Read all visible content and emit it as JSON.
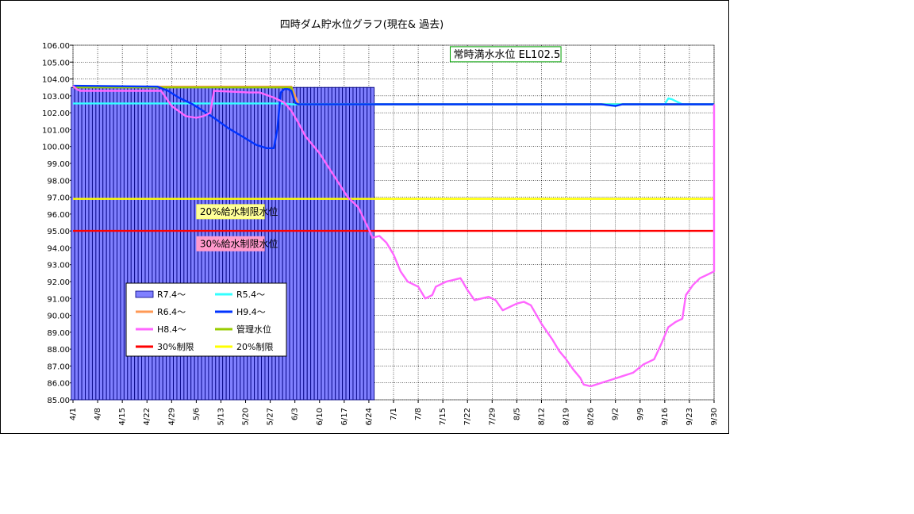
{
  "chart_data": {
    "type": "bar",
    "title": "四時ダム貯水位グラフ(現在& 過去)",
    "xlabel": "",
    "ylabel": "",
    "ylim": [
      85.0,
      106.0
    ],
    "y_ticks": [
      "85.00",
      "86.00",
      "87.00",
      "88.00",
      "89.00",
      "90.00",
      "91.00",
      "92.00",
      "93.00",
      "94.00",
      "95.00",
      "96.00",
      "97.00",
      "98.00",
      "99.00",
      "100.00",
      "101.00",
      "102.00",
      "103.00",
      "104.00",
      "105.00",
      "106.00"
    ],
    "x_ticks": [
      "4/1",
      "4/8",
      "4/15",
      "4/22",
      "4/29",
      "5/6",
      "5/13",
      "5/20",
      "5/27",
      "6/3",
      "6/10",
      "6/17",
      "6/24",
      "7/1",
      "7/8",
      "7/15",
      "7/22",
      "7/29",
      "8/5",
      "8/12",
      "8/19",
      "8/26",
      "9/2",
      "9/9",
      "9/16",
      "9/23",
      "9/30"
    ],
    "x_day_range": [
      0,
      182
    ],
    "grid": true,
    "legend_position": "center-left",
    "annotations": [
      {
        "text": "常時満水水位 EL102.5",
        "day": 108,
        "y": 105.3,
        "border": "#00a000",
        "background": "#ffffff"
      },
      {
        "text": "20%給水制限水位",
        "day": 36,
        "y": 96.0,
        "border": "#ffff66",
        "background": "#ffff99"
      },
      {
        "text": "30%給水制限水位",
        "day": 36,
        "y": 94.1,
        "border": "#ff99cc",
        "background": "#ff99cc"
      }
    ],
    "series": [
      {
        "name": "R7.4～",
        "kind": "bar",
        "color": "#8080ff",
        "edge": "#000080",
        "days": [
          0,
          85
        ],
        "value": 103.5
      },
      {
        "name": "R5.4～",
        "kind": "line",
        "color": "#33ffff",
        "points": [
          [
            0,
            102.55
          ],
          [
            60,
            102.55
          ],
          [
            62,
            102.5
          ],
          [
            88,
            102.5
          ],
          [
            130,
            102.5
          ],
          [
            155,
            102.5
          ],
          [
            168,
            102.5
          ],
          [
            169,
            102.85
          ],
          [
            170,
            102.8
          ],
          [
            173,
            102.5
          ],
          [
            182,
            102.5
          ]
        ]
      },
      {
        "name": "R6.4～",
        "kind": "line",
        "color": "#ff9955",
        "points": [
          [
            0,
            103.55
          ],
          [
            58,
            103.55
          ],
          [
            62,
            103.55
          ],
          [
            64,
            102.5
          ],
          [
            130,
            102.5
          ],
          [
            182,
            102.5
          ]
        ]
      },
      {
        "name": "H9.4～",
        "kind": "line",
        "color": "#0033ff",
        "points": [
          [
            0,
            103.6
          ],
          [
            24,
            103.55
          ],
          [
            27,
            103.3
          ],
          [
            30,
            102.9
          ],
          [
            34,
            102.5
          ],
          [
            37,
            102.1
          ],
          [
            40,
            101.7
          ],
          [
            44,
            101.1
          ],
          [
            48,
            100.6
          ],
          [
            52,
            100.1
          ],
          [
            55,
            99.9
          ],
          [
            57,
            99.9
          ],
          [
            58,
            101.0
          ],
          [
            59,
            103.2
          ],
          [
            60,
            103.4
          ],
          [
            61,
            103.4
          ],
          [
            62,
            103.3
          ],
          [
            63,
            102.6
          ],
          [
            64,
            102.5
          ],
          [
            130,
            102.5
          ],
          [
            150,
            102.5
          ],
          [
            154,
            102.4
          ],
          [
            156,
            102.5
          ],
          [
            182,
            102.5
          ]
        ]
      },
      {
        "name": "H8.4～",
        "kind": "line",
        "color": "#ff66ff",
        "points": [
          [
            0,
            103.6
          ],
          [
            1,
            103.4
          ],
          [
            2,
            103.3
          ],
          [
            25,
            103.3
          ],
          [
            28,
            102.4
          ],
          [
            32,
            101.8
          ],
          [
            35,
            101.7
          ],
          [
            37,
            101.8
          ],
          [
            39,
            102.0
          ],
          [
            40,
            103.3
          ],
          [
            50,
            103.2
          ],
          [
            53,
            103.2
          ],
          [
            57,
            102.9
          ],
          [
            60,
            102.6
          ],
          [
            62,
            102.1
          ],
          [
            64,
            101.4
          ],
          [
            66,
            100.6
          ],
          [
            70,
            99.6
          ],
          [
            74,
            98.3
          ],
          [
            78,
            97.0
          ],
          [
            81,
            96.4
          ],
          [
            84,
            95.1
          ],
          [
            85,
            94.6
          ],
          [
            87,
            94.7
          ],
          [
            89,
            94.3
          ],
          [
            91,
            93.6
          ],
          [
            93,
            92.6
          ],
          [
            95,
            92.0
          ],
          [
            98,
            91.7
          ],
          [
            100,
            91.0
          ],
          [
            102,
            91.2
          ],
          [
            103,
            91.7
          ],
          [
            106,
            92.0
          ],
          [
            108,
            92.1
          ],
          [
            110,
            92.2
          ],
          [
            112,
            91.5
          ],
          [
            114,
            90.9
          ],
          [
            116,
            91.0
          ],
          [
            118,
            91.1
          ],
          [
            120,
            90.9
          ],
          [
            122,
            90.3
          ],
          [
            124,
            90.5
          ],
          [
            126,
            90.7
          ],
          [
            128,
            90.8
          ],
          [
            130,
            90.6
          ],
          [
            133,
            89.5
          ],
          [
            136,
            88.6
          ],
          [
            138,
            87.9
          ],
          [
            140,
            87.4
          ],
          [
            142,
            86.8
          ],
          [
            144,
            86.3
          ],
          [
            145,
            85.9
          ],
          [
            147,
            85.8
          ],
          [
            150,
            86.0
          ],
          [
            153,
            86.2
          ],
          [
            156,
            86.4
          ],
          [
            159,
            86.6
          ],
          [
            162,
            87.1
          ],
          [
            165,
            87.4
          ],
          [
            167,
            88.3
          ],
          [
            169,
            89.3
          ],
          [
            171,
            89.6
          ],
          [
            173,
            89.8
          ],
          [
            174,
            91.2
          ],
          [
            176,
            91.8
          ],
          [
            178,
            92.2
          ],
          [
            180,
            92.4
          ],
          [
            182,
            92.6
          ],
          [
            183,
            93.0
          ],
          [
            184,
            102.5
          ],
          [
            186,
            102.5
          ],
          [
            188,
            102.7
          ],
          [
            189,
            102.8
          ],
          [
            190,
            102.5
          ],
          [
            182,
            102.5
          ]
        ]
      },
      {
        "name": "管理水位",
        "kind": "line",
        "color": "#99cc00",
        "points": [
          [
            0,
            103.5
          ],
          [
            62,
            103.5
          ],
          [
            63,
            102.5
          ],
          [
            182,
            102.5
          ]
        ]
      },
      {
        "name": "30%制限",
        "kind": "line",
        "color": "#ff0000",
        "points": [
          [
            0,
            95.0
          ],
          [
            182,
            95.0
          ]
        ]
      },
      {
        "name": "20%制限",
        "kind": "line",
        "color": "#ffff00",
        "points": [
          [
            0,
            96.9
          ],
          [
            182,
            96.9
          ]
        ]
      }
    ]
  }
}
